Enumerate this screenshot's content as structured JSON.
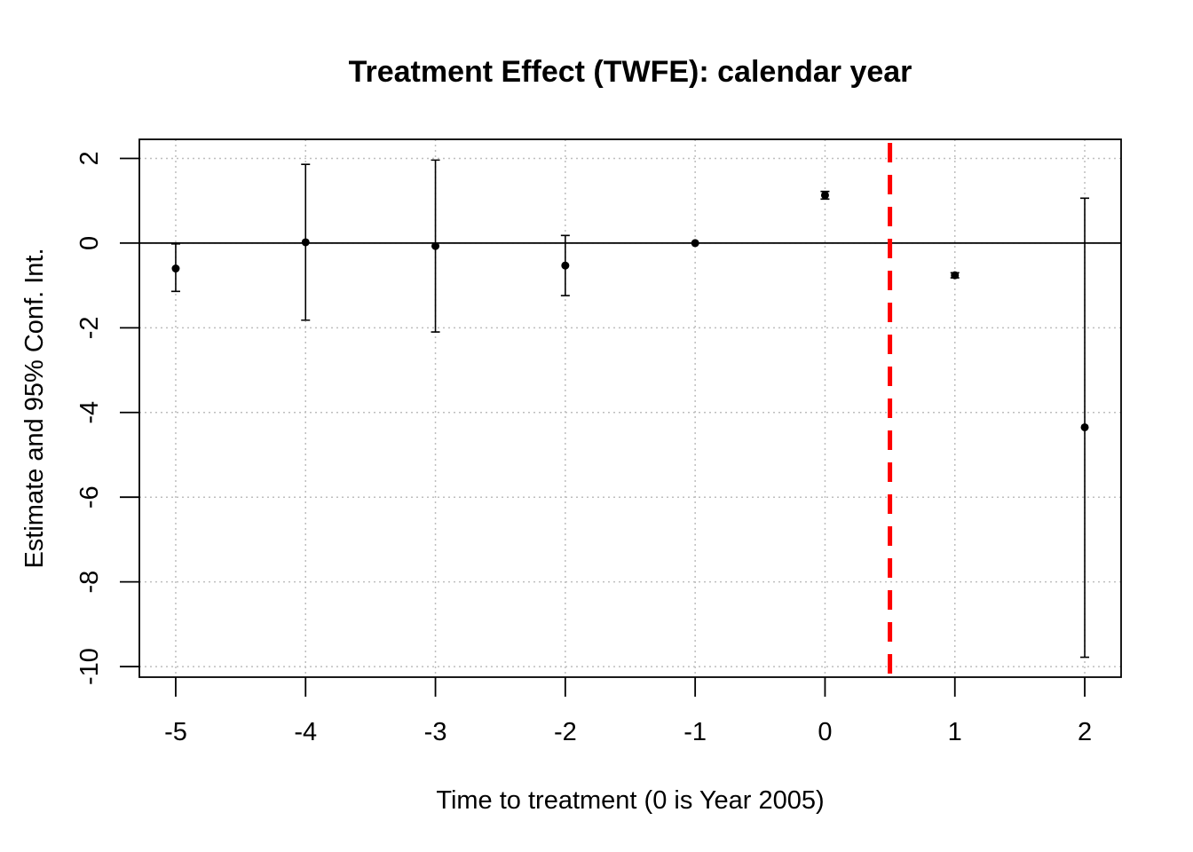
{
  "chart_data": {
    "type": "scatter",
    "title": "Treatment Effect (TWFE): calendar year",
    "xlabel": "Time to treatment (0 is Year 2005)",
    "ylabel": "Estimate and 95% Conf. Int.",
    "x": [
      -5,
      -4,
      -3,
      -2,
      -1,
      0,
      1,
      2
    ],
    "estimate": [
      -0.6,
      0.02,
      -0.07,
      -0.53,
      0.0,
      1.13,
      -0.76,
      -4.35
    ],
    "ci_low": [
      -1.14,
      -1.82,
      -2.1,
      -1.24,
      0.0,
      1.04,
      -0.82,
      -9.78
    ],
    "ci_high": [
      -0.02,
      1.86,
      1.96,
      0.18,
      0.0,
      1.22,
      -0.7,
      1.06
    ],
    "xlim": [
      -5.28,
      2.28
    ],
    "ylim": [
      -10.25,
      2.45
    ],
    "x_ticks": [
      -5,
      -4,
      -3,
      -2,
      -1,
      0,
      1,
      2
    ],
    "y_ticks": [
      2,
      0,
      -2,
      -4,
      -6,
      -8,
      -10
    ],
    "x_tick_labels": [
      "-5",
      "-4",
      "-3",
      "-2",
      "-1",
      "0",
      "1",
      "2"
    ],
    "y_tick_labels": [
      "2",
      "0",
      "-2",
      "-4",
      "-6",
      "-8",
      "-10"
    ],
    "reference_hline": 0,
    "reference_vline": 0.5,
    "reference_vline_color": "#ff0000",
    "grid": true
  }
}
